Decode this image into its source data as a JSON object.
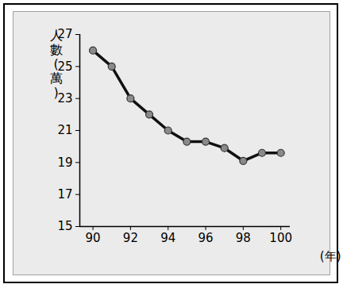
{
  "chart_data": {
    "type": "line",
    "x_label": "(年)",
    "y_label": "人數(萬)",
    "x": [
      90,
      91,
      92,
      93,
      94,
      95,
      96,
      97,
      98,
      99,
      100
    ],
    "values": [
      26,
      25,
      23,
      22,
      21,
      20.3,
      20.3,
      19.9,
      19.1,
      19.6,
      19.6
    ],
    "color": "#111111",
    "marker": "circle",
    "xlim": [
      89.3,
      100.5
    ],
    "ylim": [
      15,
      27
    ],
    "xticks": [
      90,
      92,
      94,
      96,
      98,
      100
    ],
    "yticks": [
      15,
      17,
      19,
      21,
      23,
      25,
      27
    ],
    "grid": false
  }
}
